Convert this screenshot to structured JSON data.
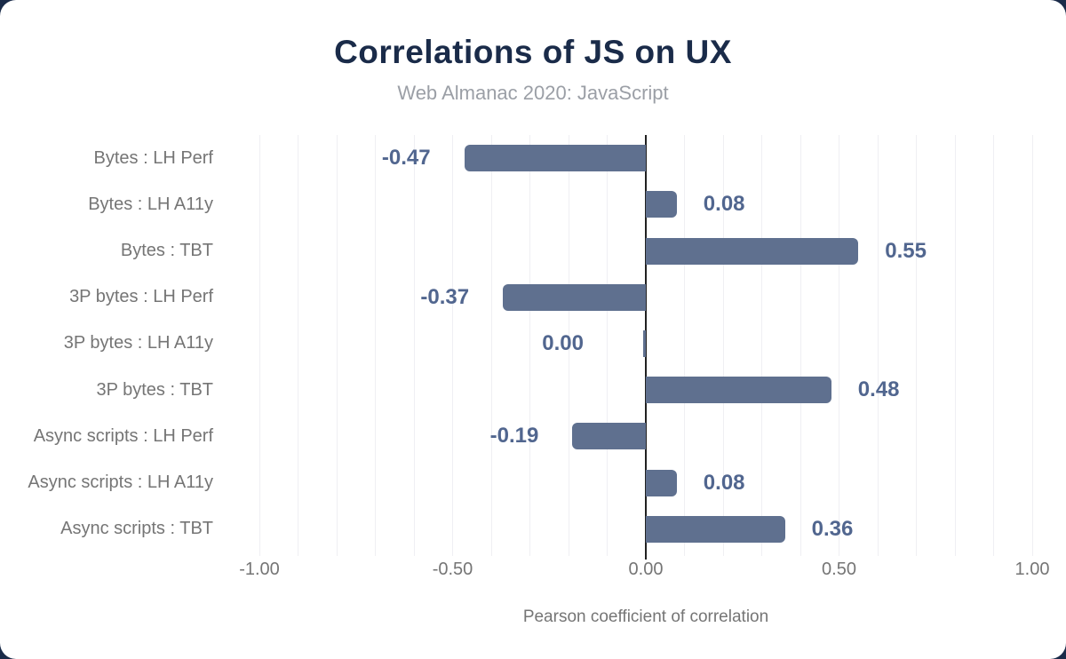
{
  "header": {
    "title": "Correlations of JS on UX",
    "subtitle": "Web Almanac 2020: JavaScript"
  },
  "chart_data": {
    "type": "bar",
    "orientation": "horizontal",
    "title": "Correlations of JS on UX",
    "subtitle": "Web Almanac 2020: JavaScript",
    "xlabel": "Pearson coefficient of correlation",
    "ylabel": "",
    "xlim": [
      -1.0,
      1.0
    ],
    "grid_step": 0.1,
    "grid": true,
    "legend_position": "none",
    "categories": [
      "Bytes : LH Perf",
      "Bytes : LH A11y",
      "Bytes : TBT",
      "3P bytes : LH Perf",
      "3P bytes : LH A11y",
      "3P bytes : TBT",
      "Async scripts : LH Perf",
      "Async scripts : LH A11y",
      "Async scripts : TBT"
    ],
    "values": [
      -0.47,
      0.08,
      0.55,
      -0.37,
      0.0,
      0.48,
      -0.19,
      0.08,
      0.36
    ],
    "value_labels": [
      "-0.47",
      "0.08",
      "0.55",
      "-0.37",
      "0.00",
      "0.48",
      "-0.19",
      "0.08",
      "0.36"
    ],
    "x_ticks": [
      {
        "value": -1.0,
        "label": "-1.00"
      },
      {
        "value": -0.5,
        "label": "-0.50"
      },
      {
        "value": 0.0,
        "label": "0.00"
      },
      {
        "value": 0.5,
        "label": "0.50"
      },
      {
        "value": 1.0,
        "label": "1.00"
      }
    ],
    "colors": {
      "bar": "#5f708f",
      "value_label": "#51668f",
      "grid": "#efeff3",
      "zero_line": "#212121",
      "axis_text": "#757575",
      "title": "#1a2b49",
      "subtitle": "#9b9fa6",
      "background": "#ffffff",
      "frame": "#1a2b49"
    }
  }
}
